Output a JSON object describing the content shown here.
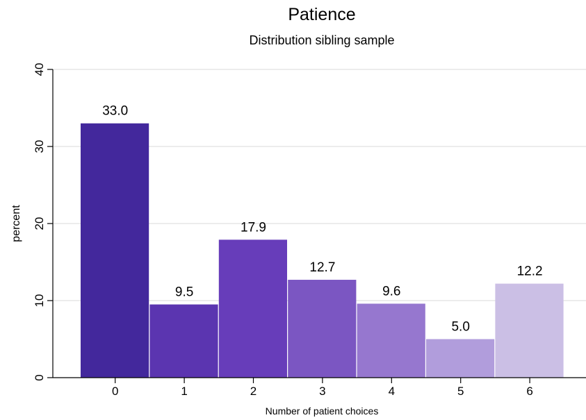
{
  "chart_data": {
    "type": "bar",
    "title": "Patience",
    "subtitle": "Distribution sibling sample",
    "xlabel": "Number of patient choices",
    "ylabel": "percent",
    "categories": [
      "0",
      "1",
      "2",
      "3",
      "4",
      "5",
      "6"
    ],
    "values": [
      33.0,
      9.5,
      17.9,
      12.7,
      9.6,
      5.0,
      12.2
    ],
    "value_labels": [
      "33.0",
      "9.5",
      "17.9",
      "12.7",
      "9.6",
      "5.0",
      "12.2"
    ],
    "ylim": [
      0,
      40
    ],
    "yticks": [
      0,
      10,
      20,
      30,
      40
    ],
    "ytick_labels": [
      "0",
      "10",
      "20",
      "30",
      "40"
    ],
    "grid": true,
    "legend": "none",
    "bar_colors": [
      "#43289c",
      "#5b35b0",
      "#673dba",
      "#7b56c2",
      "#9677cf",
      "#b19ddc",
      "#cbbfe5"
    ],
    "grid_color": "#e6e6e6",
    "axis_color": "#000000"
  }
}
